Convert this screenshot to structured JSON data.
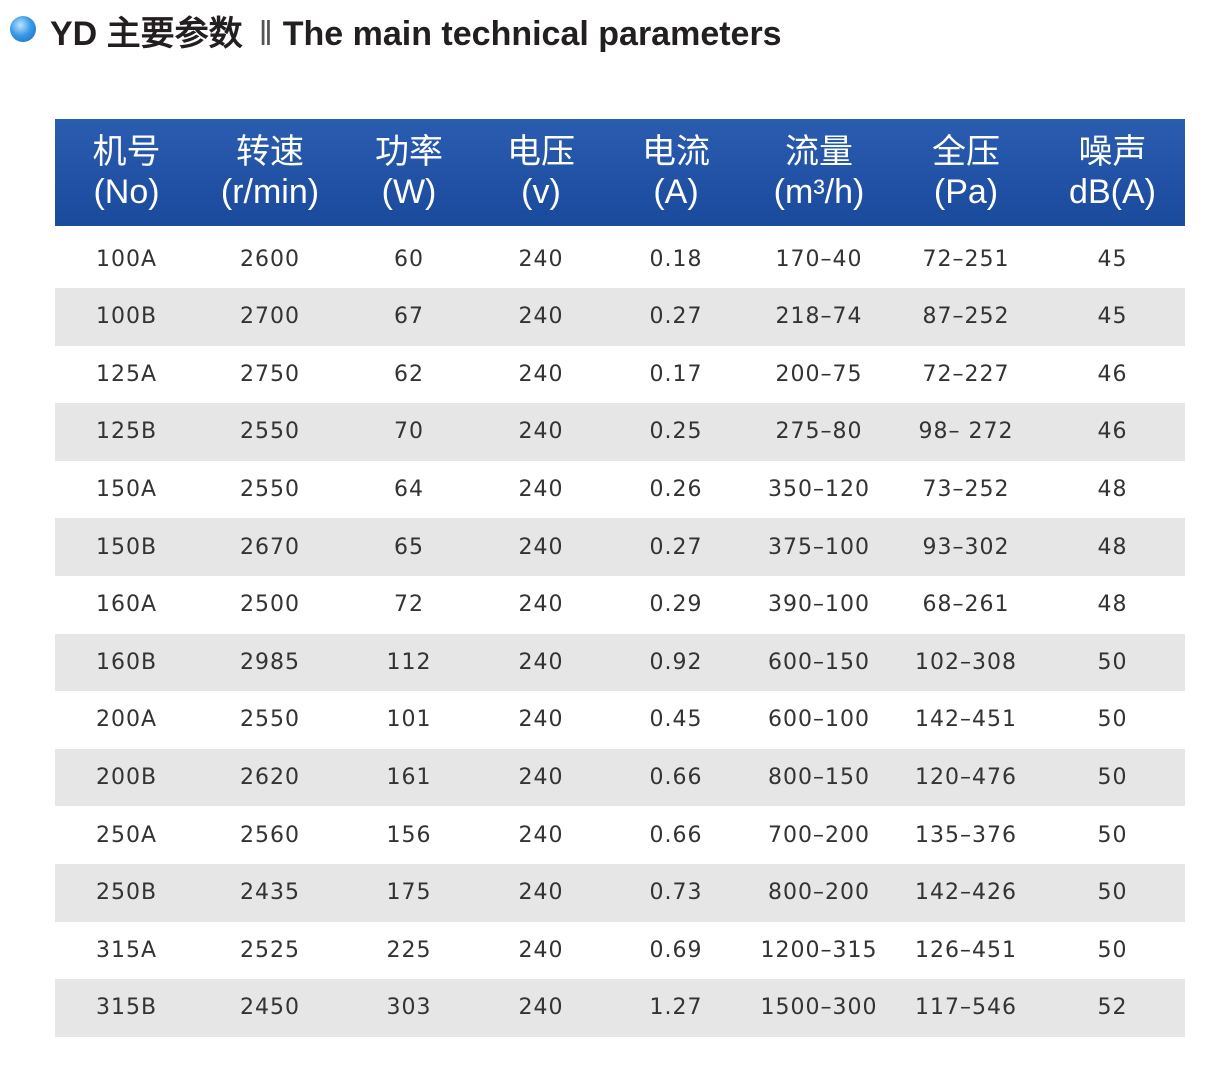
{
  "header": {
    "title_zh": "YD 主要参数",
    "separator": "‖",
    "title_en": "The main technical parameters"
  },
  "table": {
    "columns": [
      {
        "zh": "机号",
        "en": "(No)"
      },
      {
        "zh": "转速",
        "en": "(r/min)"
      },
      {
        "zh": "功率",
        "en": "(W)"
      },
      {
        "zh": "电压",
        "en": "(v)"
      },
      {
        "zh": "电流",
        "en": "(A)"
      },
      {
        "zh": "流量",
        "en": "(m³/h)"
      },
      {
        "zh": "全压",
        "en": "(Pa)"
      },
      {
        "zh": "噪声",
        "en": "dB(A)"
      }
    ],
    "rows": [
      [
        "100A",
        "2600",
        "60",
        "240",
        "0.18",
        "170–40",
        "72–251",
        "45"
      ],
      [
        "100B",
        "2700",
        "67",
        "240",
        "0.27",
        "218–74",
        "87–252",
        "45"
      ],
      [
        "125A",
        "2750",
        "62",
        "240",
        "0.17",
        "200–75",
        "72–227",
        "46"
      ],
      [
        "125B",
        "2550",
        "70",
        "240",
        "0.25",
        "275–80",
        "98– 272",
        "46"
      ],
      [
        "150A",
        "2550",
        "64",
        "240",
        "0.26",
        "350–120",
        "73–252",
        "48"
      ],
      [
        "150B",
        "2670",
        "65",
        "240",
        "0.27",
        "375–100",
        "93–302",
        "48"
      ],
      [
        "160A",
        "2500",
        "72",
        "240",
        "0.29",
        "390–100",
        "68–261",
        "48"
      ],
      [
        "160B",
        "2985",
        "112",
        "240",
        "0.92",
        "600–150",
        "102–308",
        "50"
      ],
      [
        "200A",
        "2550",
        "101",
        "240",
        "0.45",
        "600–100",
        "142–451",
        "50"
      ],
      [
        "200B",
        "2620",
        "161",
        "240",
        "0.66",
        "800–150",
        "120–476",
        "50"
      ],
      [
        "250A",
        "2560",
        "156",
        "240",
        "0.66",
        "700–200",
        "135–376",
        "50"
      ],
      [
        "250B",
        "2435",
        "175",
        "240",
        "0.73",
        "800–200",
        "142–426",
        "50"
      ],
      [
        "315A",
        "2525",
        "225",
        "240",
        "0.69",
        "1200–315",
        "126–451",
        "50"
      ],
      [
        "315B",
        "2450",
        "303",
        "240",
        "1.27",
        "1500–300",
        "117–546",
        "52"
      ]
    ]
  }
}
